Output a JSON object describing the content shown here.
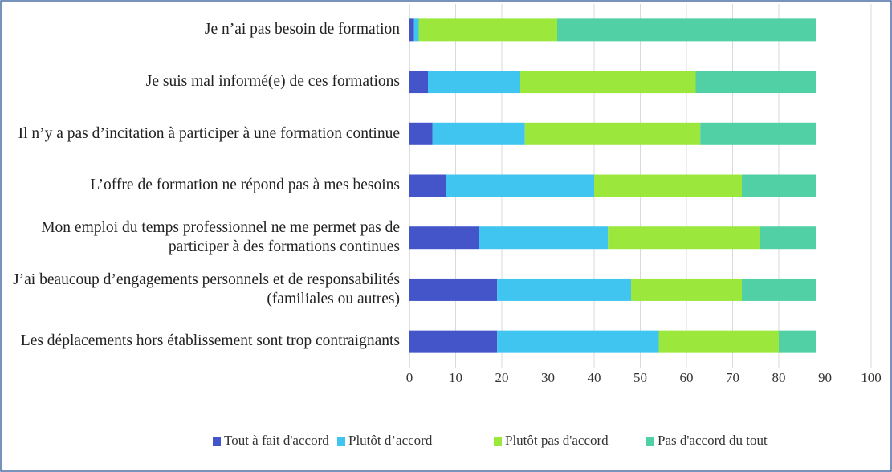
{
  "chart_data": {
    "type": "stacked_barh",
    "categories": [
      "Je n’ai pas besoin de formation",
      "Je suis mal informé(e) de ces formations",
      "Il n’y a pas d’incitation à participer à une formation continue",
      "L’offre de formation ne répond pas à mes besoins",
      "Mon emploi du temps professionnel ne me permet pas de participer à des formations continues",
      "J’ai beaucoup d’engagements personnels et de responsabilités (familiales ou autres)",
      "Les déplacements hors établissement sont trop contraignants"
    ],
    "series": [
      {
        "name": "Tout à fait d'accord",
        "color": "#4355c9",
        "values": [
          1,
          4,
          5,
          8,
          15,
          19,
          19
        ]
      },
      {
        "name": "Plutôt d’accord",
        "color": "#3fc5f0",
        "values": [
          1,
          20,
          20,
          32,
          28,
          29,
          35
        ]
      },
      {
        "name": "Plutôt pas d'accord",
        "color": "#9be73c",
        "values": [
          30,
          38,
          38,
          32,
          33,
          24,
          26
        ]
      },
      {
        "name": "Pas d'accord du tout",
        "color": "#50d0a4",
        "values": [
          56,
          26,
          25,
          16,
          12,
          16,
          8
        ]
      }
    ],
    "xlim": [
      0,
      100
    ],
    "xticks": [
      0,
      10,
      20,
      30,
      40,
      50,
      60,
      70,
      80,
      90,
      100
    ],
    "grid": true,
    "legend": "bottom"
  }
}
